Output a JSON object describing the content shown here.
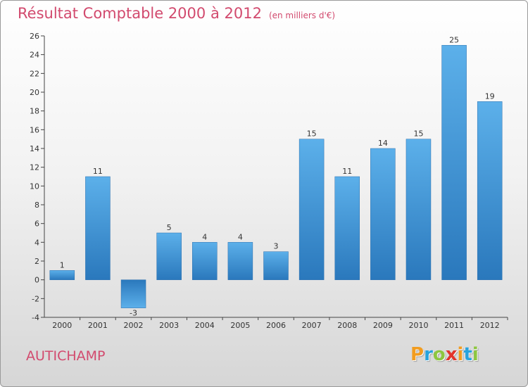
{
  "header": {
    "title": "Résultat Comptable 2000 à 2012",
    "unit": "(en milliers d'€)"
  },
  "footer": {
    "commune": "AUTICHAMP",
    "logo_letters": [
      "P",
      "r",
      "o",
      "x",
      "i",
      "t",
      "i"
    ],
    "logo_colors": [
      "#f29c1f",
      "#27a3dd",
      "#8dc63f",
      "#e2342b",
      "#f29c1f",
      "#27a3dd",
      "#8dc63f"
    ]
  },
  "chart_data": {
    "type": "bar",
    "categories": [
      "2000",
      "2001",
      "2002",
      "2003",
      "2004",
      "2005",
      "2006",
      "2007",
      "2008",
      "2009",
      "2010",
      "2011",
      "2012"
    ],
    "values": [
      1,
      11,
      -3,
      5,
      4,
      4,
      3,
      15,
      11,
      14,
      15,
      25,
      19
    ],
    "ylim": [
      -4,
      26
    ],
    "yticks": [
      -4,
      -2,
      0,
      2,
      4,
      6,
      8,
      10,
      12,
      14,
      16,
      18,
      20,
      22,
      24,
      26
    ],
    "grid": false,
    "bar_color": "#3a8fd0"
  }
}
